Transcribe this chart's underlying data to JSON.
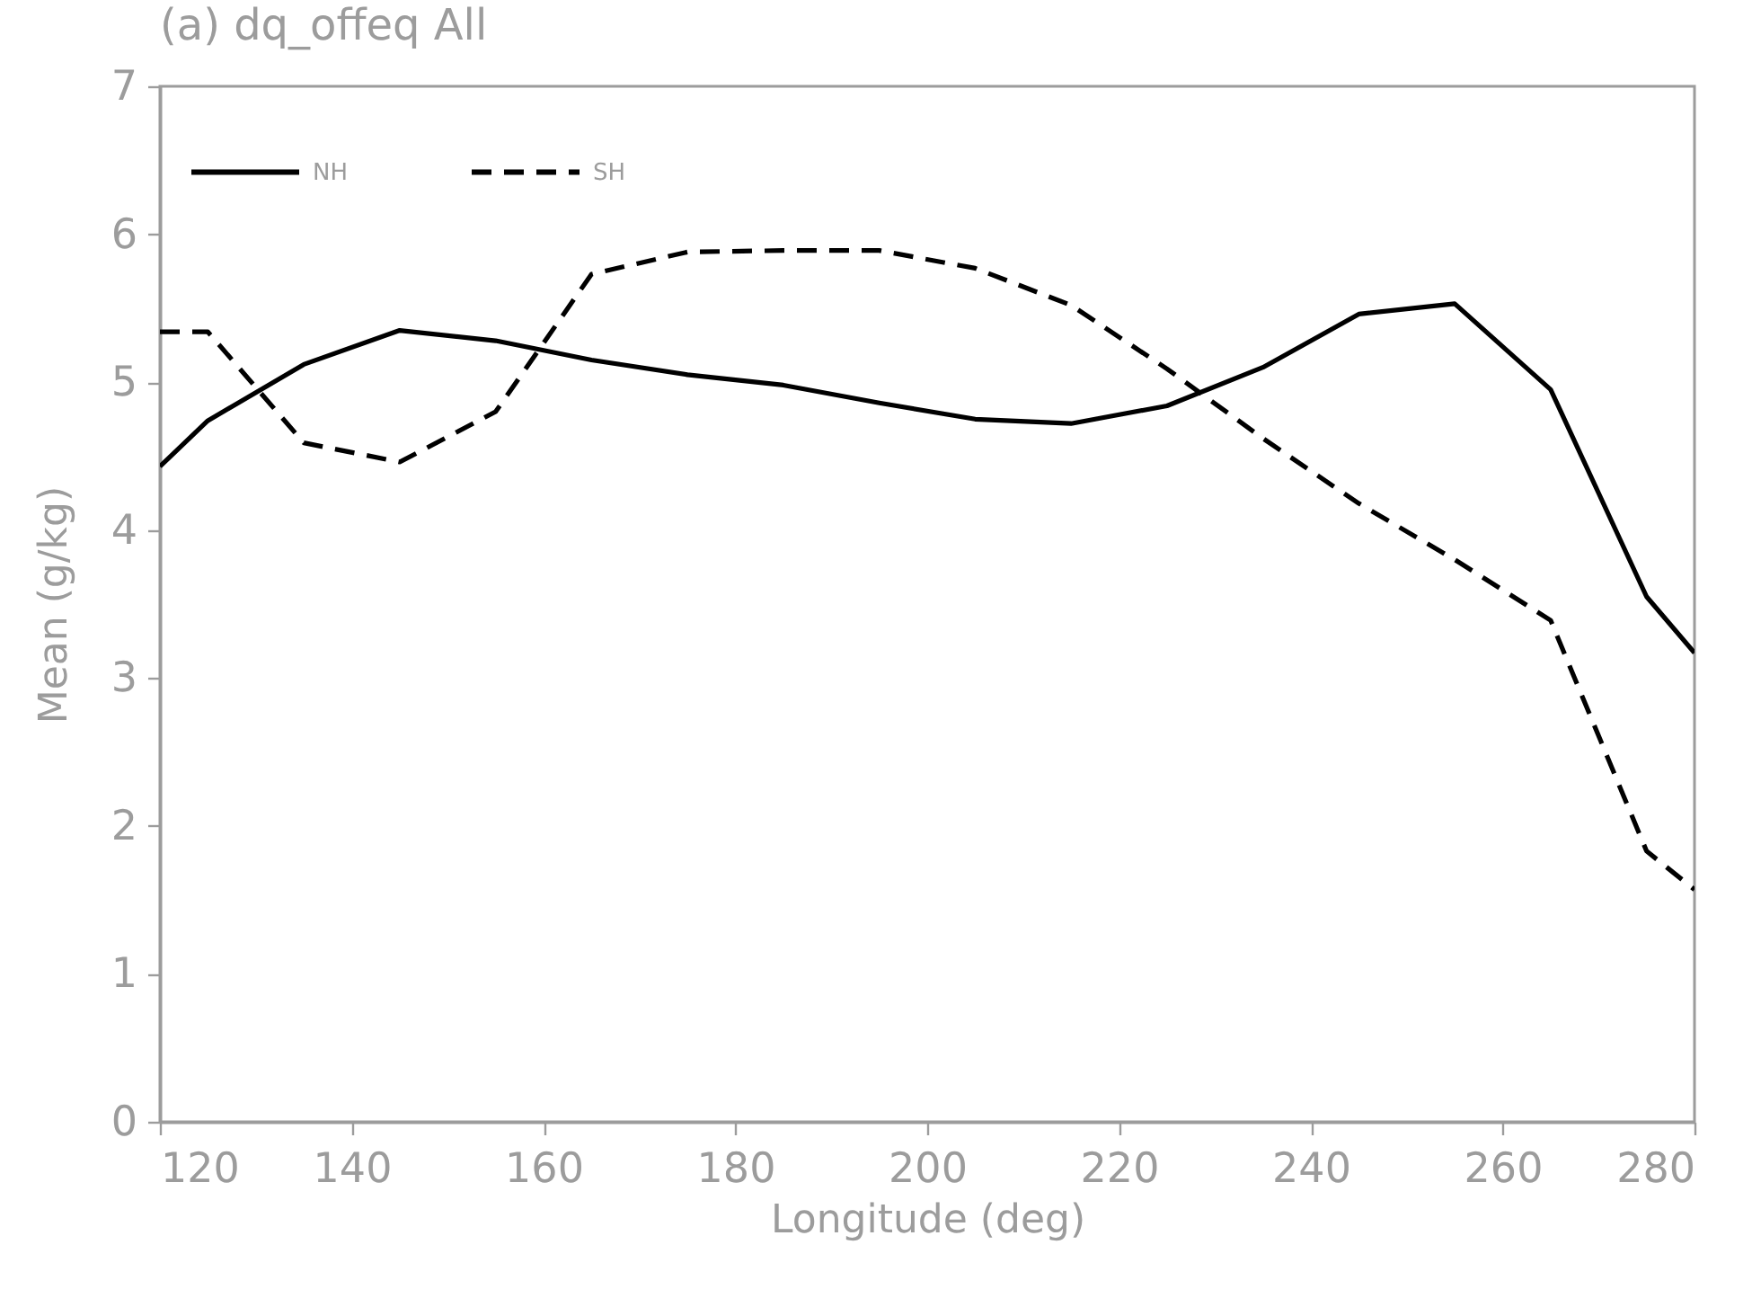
{
  "chart_data": {
    "type": "line",
    "title": "(a) dq_offeq   All",
    "xlabel": "Longitude (deg)",
    "ylabel": "Mean (g/kg)",
    "xlim": [
      120,
      280
    ],
    "xticks": [
      120,
      140,
      160,
      180,
      200,
      220,
      240,
      260,
      280
    ],
    "ylim": [
      0,
      7
    ],
    "yticks": [
      0,
      1,
      2,
      3,
      4,
      5,
      6,
      7
    ],
    "legend": "top left",
    "x": [
      120,
      125,
      135,
      145,
      155,
      165,
      175,
      185,
      195,
      205,
      215,
      225,
      235,
      245,
      255,
      265,
      275,
      280
    ],
    "series": [
      {
        "name": "NH",
        "color": "#000000",
        "line_style": "solid",
        "values": [
          4.43,
          4.74,
          5.12,
          5.35,
          5.28,
          5.15,
          5.05,
          4.98,
          4.86,
          4.75,
          4.72,
          4.84,
          5.1,
          5.46,
          5.53,
          4.95,
          3.55,
          3.17
        ]
      },
      {
        "name": "SH",
        "color": "#000000",
        "line_style": "dashed",
        "values": [
          5.34,
          5.34,
          4.59,
          4.46,
          4.8,
          5.73,
          5.88,
          5.89,
          5.89,
          5.77,
          5.52,
          5.09,
          4.62,
          4.18,
          3.8,
          3.39,
          1.83,
          1.57
        ]
      }
    ]
  }
}
